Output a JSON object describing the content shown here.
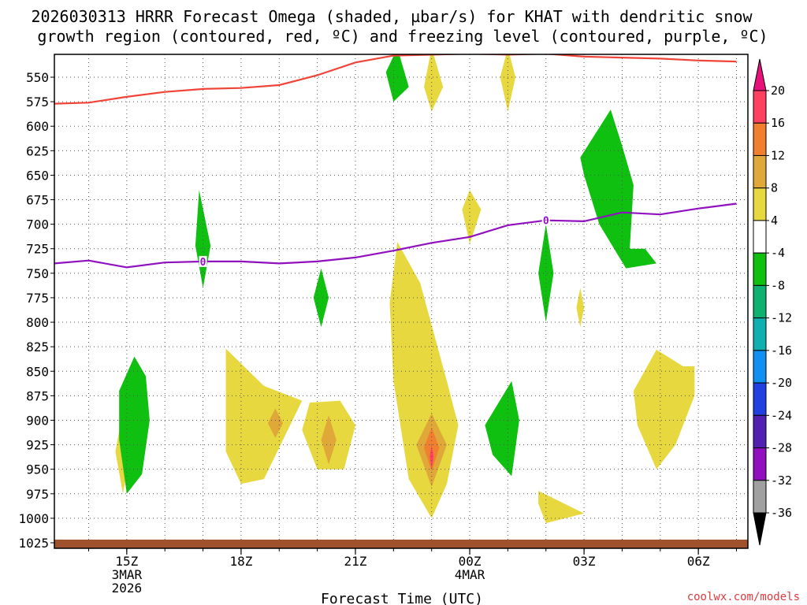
{
  "chart_data": {
    "type": "contour",
    "title_line1": "2026030313 HRRR Forecast Omega (shaded, µbar/s) for KHAT with dendritic snow",
    "title_line2": "growth region (contoured, red, ºC) and freezing level (contoured, purple, ºC)",
    "xlabel": "Forecast Time (UTC)",
    "watermark": "coolwx.com/models",
    "x_hours": [
      14,
      15,
      16,
      17,
      18,
      19,
      20,
      21,
      22,
      23,
      24,
      25,
      26,
      27,
      28,
      29,
      30,
      31
    ],
    "x_ticks": [
      {
        "hour": 15,
        "lines": [
          "15Z",
          "3MAR",
          "2026"
        ]
      },
      {
        "hour": 18,
        "lines": [
          "18Z"
        ]
      },
      {
        "hour": 21,
        "lines": [
          "21Z"
        ]
      },
      {
        "hour": 24,
        "lines": [
          "00Z",
          "4MAR"
        ]
      },
      {
        "hour": 27,
        "lines": [
          "03Z"
        ]
      },
      {
        "hour": 30,
        "lines": [
          "06Z"
        ]
      }
    ],
    "y_ticks": [
      550,
      575,
      600,
      625,
      650,
      675,
      700,
      725,
      750,
      775,
      800,
      825,
      850,
      875,
      900,
      925,
      950,
      975,
      1000,
      1025
    ],
    "colorbar": {
      "levels": [
        20,
        16,
        12,
        8,
        4,
        -4,
        -8,
        -12,
        -16,
        -20,
        -24,
        -28,
        -32,
        -36
      ],
      "colors": [
        "#ff4060",
        "#f08030",
        "#e0a838",
        "#e8d840",
        "#ffffff",
        "#10c010",
        "#10b070",
        "#10b0b0",
        "#1090f0",
        "#2040e0",
        "#5020b0",
        "#9010c0",
        "#a0a0a0",
        "#000000"
      ],
      "top_color": "#e8107a"
    },
    "dgz_line": {
      "name": "dendritic snow growth region",
      "color": "#f04438",
      "points": [
        [
          13.1,
          577
        ],
        [
          14,
          576
        ],
        [
          15,
          570
        ],
        [
          16,
          565
        ],
        [
          17,
          562
        ],
        [
          18,
          561
        ],
        [
          19,
          558
        ],
        [
          20,
          548
        ],
        [
          21,
          535
        ],
        [
          22,
          528
        ],
        [
          23,
          527
        ],
        [
          24,
          526
        ],
        [
          25,
          527
        ],
        [
          26,
          526
        ],
        [
          27,
          529
        ],
        [
          28,
          530
        ],
        [
          29,
          531
        ],
        [
          30,
          533
        ],
        [
          31,
          534
        ]
      ]
    },
    "freezing_line": {
      "name": "freezing level",
      "color": "#9010c0",
      "label": "0",
      "label_hours": [
        17.0,
        26.0
      ],
      "points": [
        [
          13.1,
          740
        ],
        [
          14,
          737
        ],
        [
          15,
          744
        ],
        [
          16,
          739
        ],
        [
          17,
          738
        ],
        [
          18,
          738
        ],
        [
          19,
          740
        ],
        [
          20,
          738
        ],
        [
          21,
          734
        ],
        [
          22,
          727
        ],
        [
          23,
          719
        ],
        [
          24,
          713
        ],
        [
          25,
          701
        ],
        [
          26,
          696
        ],
        [
          27,
          697
        ],
        [
          28,
          688
        ],
        [
          29,
          690
        ],
        [
          30,
          684
        ],
        [
          31,
          679
        ]
      ]
    },
    "omega_regions": [
      {
        "color": "#e8d840",
        "points": [
          [
            14.9,
            890
          ],
          [
            15.1,
            932
          ],
          [
            14.9,
            975
          ],
          [
            14.7,
            932
          ]
        ]
      },
      {
        "color": "#10c010",
        "points": [
          [
            15.2,
            835
          ],
          [
            15.5,
            855
          ],
          [
            15.6,
            900
          ],
          [
            15.4,
            955
          ],
          [
            15.0,
            975
          ],
          [
            14.8,
            920
          ],
          [
            14.8,
            870
          ]
        ]
      },
      {
        "color": "#10c010",
        "points": [
          [
            16.9,
            665
          ],
          [
            17.2,
            722
          ],
          [
            17.0,
            765
          ],
          [
            16.8,
            722
          ]
        ]
      },
      {
        "color": "#e8d840",
        "points": [
          [
            17.6,
            827
          ],
          [
            18.6,
            865
          ],
          [
            19.6,
            880
          ],
          [
            19.1,
            920
          ],
          [
            18.6,
            960
          ],
          [
            18.0,
            965
          ],
          [
            17.6,
            932
          ],
          [
            17.6,
            870
          ]
        ]
      },
      {
        "color": "#e0a838",
        "points": [
          [
            18.9,
            888
          ],
          [
            19.1,
            903
          ],
          [
            18.9,
            918
          ],
          [
            18.7,
            903
          ]
        ]
      },
      {
        "color": "#e8d840",
        "points": [
          [
            19.8,
            882
          ],
          [
            20.6,
            880
          ],
          [
            21.0,
            905
          ],
          [
            20.7,
            950
          ],
          [
            20.0,
            950
          ],
          [
            19.6,
            910
          ]
        ]
      },
      {
        "color": "#e0a838",
        "points": [
          [
            20.3,
            895
          ],
          [
            20.5,
            920
          ],
          [
            20.3,
            945
          ],
          [
            20.1,
            920
          ]
        ]
      },
      {
        "color": "#10c010",
        "points": [
          [
            20.1,
            745
          ],
          [
            20.3,
            775
          ],
          [
            20.1,
            805
          ],
          [
            19.9,
            775
          ]
        ]
      },
      {
        "color": "#e8d840",
        "points": [
          [
            22.1,
            718
          ],
          [
            22.7,
            760
          ],
          [
            23.4,
            860
          ],
          [
            23.7,
            905
          ],
          [
            23.4,
            965
          ],
          [
            23.0,
            1000
          ],
          [
            22.4,
            960
          ],
          [
            22.0,
            860
          ],
          [
            21.9,
            780
          ]
        ]
      },
      {
        "color": "#e0a838",
        "points": [
          [
            23.0,
            893
          ],
          [
            23.4,
            925
          ],
          [
            23.0,
            968
          ],
          [
            22.6,
            925
          ]
        ]
      },
      {
        "color": "#f08030",
        "points": [
          [
            23.0,
            907
          ],
          [
            23.2,
            928
          ],
          [
            23.0,
            952
          ],
          [
            22.8,
            928
          ]
        ]
      },
      {
        "color": "#ff4060",
        "points": [
          [
            23.0,
            925
          ],
          [
            23.05,
            937
          ],
          [
            23.0,
            950
          ],
          [
            22.95,
            937
          ]
        ]
      },
      {
        "color": "#10c010",
        "points": [
          [
            22.1,
            520
          ],
          [
            22.4,
            560
          ],
          [
            22.0,
            575
          ],
          [
            21.8,
            545
          ]
        ]
      },
      {
        "color": "#e8d840",
        "points": [
          [
            23.0,
            520
          ],
          [
            23.3,
            560
          ],
          [
            23.0,
            585
          ],
          [
            22.8,
            560
          ]
        ]
      },
      {
        "color": "#e8d840",
        "points": [
          [
            25.0,
            520
          ],
          [
            25.2,
            550
          ],
          [
            25.0,
            585
          ],
          [
            24.8,
            550
          ]
        ]
      },
      {
        "color": "#e8d840",
        "points": [
          [
            24.0,
            665
          ],
          [
            24.3,
            685
          ],
          [
            24.0,
            720
          ],
          [
            23.8,
            685
          ]
        ]
      },
      {
        "color": "#10c010",
        "points": [
          [
            25.1,
            860
          ],
          [
            25.3,
            900
          ],
          [
            25.1,
            957
          ],
          [
            24.6,
            935
          ],
          [
            24.4,
            905
          ]
        ]
      },
      {
        "color": "#10c010",
        "points": [
          [
            26.0,
            700
          ],
          [
            26.2,
            750
          ],
          [
            26.0,
            800
          ],
          [
            25.8,
            750
          ]
        ]
      },
      {
        "color": "#e8d840",
        "points": [
          [
            25.8,
            972
          ],
          [
            27.0,
            995
          ],
          [
            26.0,
            1005
          ],
          [
            25.8,
            985
          ]
        ]
      },
      {
        "color": "#e8d840",
        "points": [
          [
            26.9,
            765
          ],
          [
            27.0,
            785
          ],
          [
            26.9,
            805
          ],
          [
            26.8,
            785
          ]
        ]
      },
      {
        "color": "#10c010",
        "points": [
          [
            27.7,
            583
          ],
          [
            28.0,
            620
          ],
          [
            28.3,
            660
          ],
          [
            28.2,
            725
          ],
          [
            28.6,
            725
          ],
          [
            28.9,
            740
          ],
          [
            28.1,
            745
          ],
          [
            27.4,
            700
          ],
          [
            27.0,
            650
          ],
          [
            26.9,
            632
          ]
        ]
      },
      {
        "color": "#e8d840",
        "points": [
          [
            28.9,
            828
          ],
          [
            29.6,
            845
          ],
          [
            29.9,
            845
          ],
          [
            29.9,
            875
          ],
          [
            29.4,
            925
          ],
          [
            28.9,
            950
          ],
          [
            28.4,
            905
          ],
          [
            28.3,
            870
          ]
        ]
      }
    ],
    "ground_color": "#a0522d"
  }
}
